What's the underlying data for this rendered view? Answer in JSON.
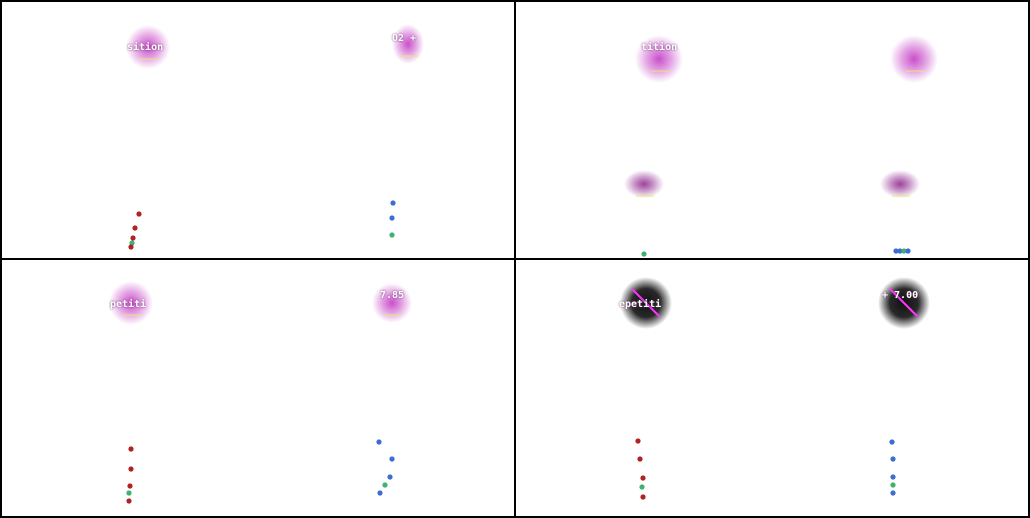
{
  "panels": [
    {
      "id": "p1",
      "labels": {
        "left": "sition",
        "right": "02 +"
      },
      "blobs": [
        {
          "cx": 146,
          "cy": 45,
          "rx": 22,
          "ry": 22,
          "color": "#c030c0",
          "style": "pink"
        },
        {
          "cx": 406,
          "cy": 42,
          "rx": 16,
          "ry": 20,
          "color": "#c030c0",
          "style": "pink"
        }
      ],
      "dots": [
        {
          "x": 137,
          "y": 212,
          "color": "#b22222"
        },
        {
          "x": 133,
          "y": 226,
          "color": "#b22222"
        },
        {
          "x": 131,
          "y": 236,
          "color": "#b22222"
        },
        {
          "x": 130,
          "y": 241,
          "color": "#3cb371"
        },
        {
          "x": 129,
          "y": 245,
          "color": "#b22222"
        },
        {
          "x": 391,
          "y": 201,
          "color": "#3c6cd8"
        },
        {
          "x": 390,
          "y": 216,
          "color": "#3c6cd8"
        },
        {
          "x": 390,
          "y": 233,
          "color": "#3cb371"
        }
      ]
    },
    {
      "id": "p2",
      "labels": {
        "left": "tition",
        "right": ""
      },
      "blobs": [
        {
          "cx": 143,
          "cy": 57,
          "rx": 24,
          "ry": 24,
          "color": "#c030c0",
          "style": "pink"
        },
        {
          "cx": 398,
          "cy": 57,
          "rx": 24,
          "ry": 24,
          "color": "#c030c0",
          "style": "pink"
        },
        {
          "cx": 128,
          "cy": 182,
          "rx": 20,
          "ry": 14,
          "color": "#8a1f8a",
          "style": "pink"
        },
        {
          "cx": 384,
          "cy": 182,
          "rx": 20,
          "ry": 14,
          "color": "#8a1f8a",
          "style": "pink"
        }
      ],
      "dots": [
        {
          "x": 128,
          "y": 252,
          "color": "#3cb371"
        },
        {
          "x": 380,
          "y": 249,
          "color": "#3c6cd8"
        },
        {
          "x": 384,
          "y": 249,
          "color": "#3c6cd8"
        },
        {
          "x": 388,
          "y": 249,
          "color": "#3cb371"
        },
        {
          "x": 392,
          "y": 249,
          "color": "#3c6cd8"
        }
      ]
    },
    {
      "id": "p3",
      "labels": {
        "left": "petiti",
        "right": "7.85"
      },
      "blobs": [
        {
          "cx": 129,
          "cy": 43,
          "rx": 22,
          "ry": 22,
          "color": "#c030c0",
          "style": "pink"
        },
        {
          "cx": 390,
          "cy": 43,
          "rx": 20,
          "ry": 20,
          "color": "#c030c0",
          "style": "pink"
        }
      ],
      "dots": [
        {
          "x": 129,
          "y": 189,
          "color": "#b22222"
        },
        {
          "x": 129,
          "y": 209,
          "color": "#b22222"
        },
        {
          "x": 128,
          "y": 226,
          "color": "#b22222"
        },
        {
          "x": 127,
          "y": 233,
          "color": "#3cb371"
        },
        {
          "x": 127,
          "y": 241,
          "color": "#b22222"
        },
        {
          "x": 377,
          "y": 182,
          "color": "#3c6cd8"
        },
        {
          "x": 390,
          "y": 199,
          "color": "#3c6cd8"
        },
        {
          "x": 388,
          "y": 217,
          "color": "#3c6cd8"
        },
        {
          "x": 383,
          "y": 225,
          "color": "#3cb371"
        },
        {
          "x": 378,
          "y": 233,
          "color": "#3c6cd8"
        }
      ]
    },
    {
      "id": "p4",
      "labels": {
        "left": "epetiti",
        "right": "+ 7.00"
      },
      "blobs": [
        {
          "cx": 130,
          "cy": 43,
          "rx": 26,
          "ry": 26,
          "color": "#111111",
          "style": "dark"
        },
        {
          "cx": 388,
          "cy": 43,
          "rx": 26,
          "ry": 26,
          "color": "#111111",
          "style": "dark"
        }
      ],
      "dots": [
        {
          "x": 122,
          "y": 181,
          "color": "#b22222"
        },
        {
          "x": 124,
          "y": 199,
          "color": "#b22222"
        },
        {
          "x": 127,
          "y": 218,
          "color": "#b22222"
        },
        {
          "x": 126,
          "y": 227,
          "color": "#3cb371"
        },
        {
          "x": 127,
          "y": 237,
          "color": "#b22222"
        },
        {
          "x": 376,
          "y": 182,
          "color": "#3c6cd8"
        },
        {
          "x": 377,
          "y": 199,
          "color": "#3c6cd8"
        },
        {
          "x": 377,
          "y": 217,
          "color": "#3c6cd8"
        },
        {
          "x": 377,
          "y": 225,
          "color": "#3cb371"
        },
        {
          "x": 377,
          "y": 233,
          "color": "#3c6cd8"
        }
      ]
    }
  ]
}
